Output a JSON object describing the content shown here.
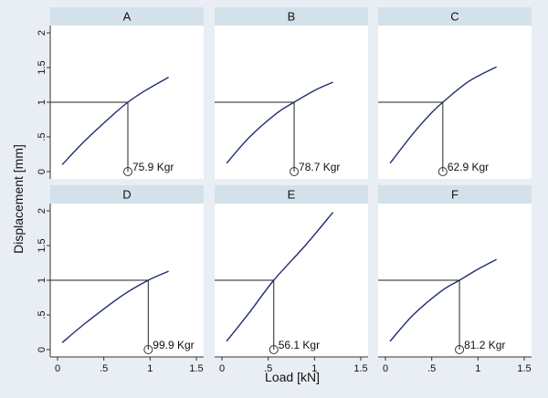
{
  "chart_data": {
    "type": "line",
    "xlabel": "Load [kN]",
    "ylabel": "Displacement [mm]",
    "xlim": [
      0,
      1.5
    ],
    "ylim": [
      0,
      2
    ],
    "x_ticks": [
      "0",
      ".5",
      "1",
      "1.5"
    ],
    "y_ticks": [
      "0",
      ".5",
      "1",
      "1.5",
      "2"
    ],
    "reference_displacement": 1,
    "panels": [
      {
        "name": "A",
        "x": [
          0.05,
          0.3,
          0.6,
          0.76,
          0.95,
          1.2
        ],
        "y": [
          0.1,
          0.45,
          0.82,
          1.0,
          1.17,
          1.36
        ],
        "crossing_load": 0.76,
        "label": "75.9 Kgr"
      },
      {
        "name": "B",
        "x": [
          0.05,
          0.3,
          0.6,
          0.78,
          1.0,
          1.2
        ],
        "y": [
          0.12,
          0.5,
          0.85,
          1.0,
          1.17,
          1.29
        ],
        "crossing_load": 0.78,
        "label": "78.7 Kgr"
      },
      {
        "name": "C",
        "x": [
          0.05,
          0.3,
          0.5,
          0.62,
          0.9,
          1.2
        ],
        "y": [
          0.12,
          0.55,
          0.85,
          1.0,
          1.3,
          1.51
        ],
        "crossing_load": 0.62,
        "label": "62.9 Kgr"
      },
      {
        "name": "D",
        "x": [
          0.05,
          0.3,
          0.7,
          0.98,
          1.2
        ],
        "y": [
          0.1,
          0.38,
          0.78,
          1.0,
          1.13
        ],
        "crossing_load": 0.98,
        "label": "99.9 Kgr"
      },
      {
        "name": "E",
        "x": [
          0.05,
          0.3,
          0.56,
          0.9,
          1.2
        ],
        "y": [
          0.12,
          0.54,
          1.0,
          1.5,
          1.98
        ],
        "crossing_load": 0.56,
        "label": "56.1 Kgr"
      },
      {
        "name": "F",
        "x": [
          0.05,
          0.3,
          0.6,
          0.8,
          1.0,
          1.2
        ],
        "y": [
          0.12,
          0.5,
          0.84,
          1.0,
          1.16,
          1.3
        ],
        "crossing_load": 0.8,
        "label": "81.2 Kgr"
      }
    ]
  }
}
